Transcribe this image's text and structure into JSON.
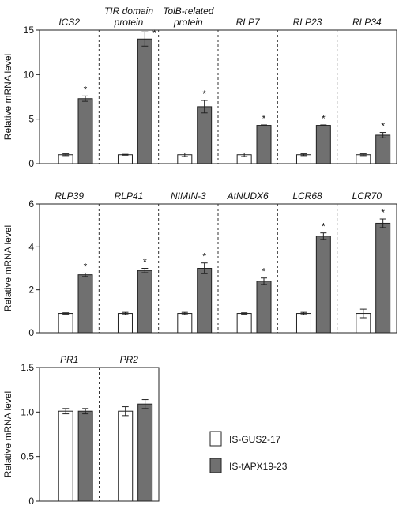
{
  "series_styles": [
    {
      "name": "IS-GUS2-17",
      "color": "#ffffff"
    },
    {
      "name": "IS-tAPX19-23",
      "color": "#707070"
    }
  ],
  "chart_data": [
    {
      "type": "bar",
      "y_label": "Relative mRNA level",
      "categories": [
        "ICS2",
        "TIR domain protein",
        "TolB-related protein",
        "RLP7",
        "RLP23",
        "RLP34"
      ],
      "series": [
        {
          "values": [
            1.0,
            1.0,
            1.0,
            1.0,
            1.0,
            1.0
          ],
          "errors": [
            0.1,
            0.05,
            0.2,
            0.2,
            0.1,
            0.1
          ]
        },
        {
          "values": [
            7.3,
            14.0,
            6.4,
            4.3,
            4.3,
            3.2
          ],
          "errors": [
            0.3,
            0.8,
            0.7,
            0.05,
            0.05,
            0.3
          ],
          "significance": [
            "*",
            "*",
            "*",
            "*",
            "*",
            "*"
          ]
        }
      ],
      "ylim": [
        0,
        15
      ],
      "yticks": [
        0,
        5,
        10,
        15
      ]
    },
    {
      "type": "bar",
      "y_label": "Relative mRNA level",
      "categories": [
        "RLP39",
        "RLP41",
        "NIMIN-3",
        "AtNUDX6",
        "LCR68",
        "LCR70"
      ],
      "series": [
        {
          "values": [
            0.9,
            0.9,
            0.9,
            0.9,
            0.9,
            0.9
          ],
          "errors": [
            0.03,
            0.05,
            0.05,
            0.03,
            0.05,
            0.2
          ]
        },
        {
          "values": [
            2.7,
            2.9,
            3.0,
            2.4,
            4.5,
            5.1
          ],
          "errors": [
            0.08,
            0.1,
            0.25,
            0.15,
            0.15,
            0.2
          ],
          "significance": [
            "*",
            "*",
            "*",
            "*",
            "*",
            "*"
          ]
        }
      ],
      "ylim": [
        0,
        6
      ],
      "yticks": [
        0,
        2,
        4,
        6
      ]
    },
    {
      "type": "bar",
      "y_label": "Relative mRNA level",
      "categories": [
        "PR1",
        "PR2"
      ],
      "series": [
        {
          "values": [
            1.01,
            1.01
          ],
          "errors": [
            0.03,
            0.05
          ]
        },
        {
          "values": [
            1.01,
            1.09
          ],
          "errors": [
            0.03,
            0.05
          ]
        }
      ],
      "ylim": [
        0,
        1.5
      ],
      "yticks": [
        0,
        0.5,
        {
          "value": 1,
          "label": "1.0"
        },
        1.5
      ]
    }
  ]
}
